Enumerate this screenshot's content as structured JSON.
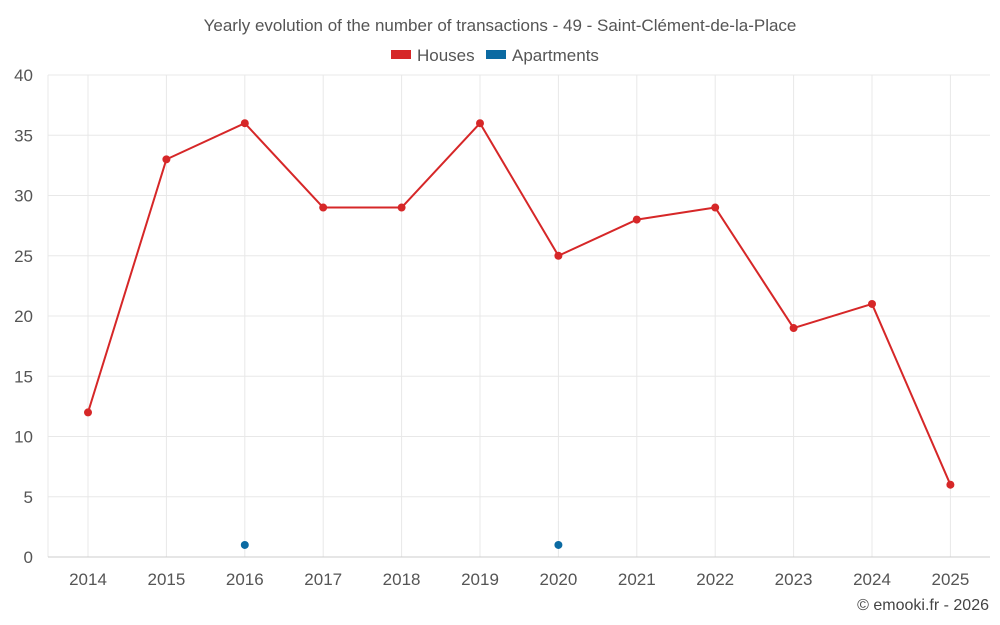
{
  "chart_data": {
    "type": "line",
    "title": "Yearly evolution of the number of transactions - 49 - Saint-Clément-de-la-Place",
    "categories": [
      "2014",
      "2015",
      "2016",
      "2017",
      "2018",
      "2019",
      "2020",
      "2021",
      "2022",
      "2023",
      "2024",
      "2025"
    ],
    "series": [
      {
        "name": "Houses",
        "color": "#d62728",
        "values": [
          12,
          33,
          36,
          29,
          29,
          36,
          25,
          28,
          29,
          19,
          21,
          6
        ]
      },
      {
        "name": "Apartments",
        "color": "#0b6aa2",
        "values": [
          null,
          null,
          1,
          null,
          null,
          null,
          1,
          null,
          null,
          null,
          null,
          null
        ]
      }
    ],
    "ylim": [
      0,
      40
    ],
    "yticks": [
      0,
      5,
      10,
      15,
      20,
      25,
      30,
      35,
      40
    ],
    "grid": true,
    "legend": "top-center"
  },
  "footer": "© emooki.fr - 2026"
}
